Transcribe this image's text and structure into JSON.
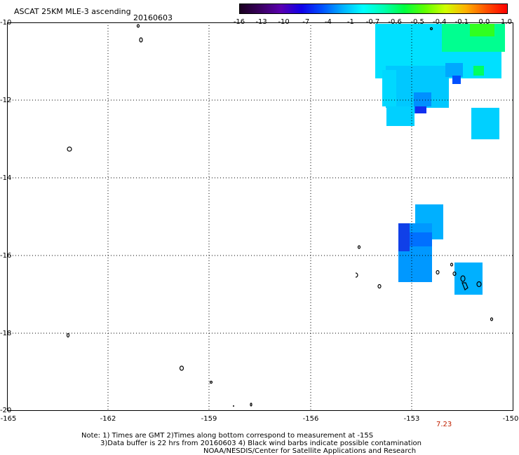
{
  "header": {
    "title": "ASCAT 25KM MLE-3 ascending",
    "date": "20160603"
  },
  "colorbar": {
    "labels": [
      "-16",
      "-13",
      "-10",
      "-7",
      "-4",
      "-1",
      "-0.7",
      "-0.6",
      "-0.5",
      "-0.4",
      "-0.1",
      "0.0",
      "1.0"
    ],
    "colors": [
      "#1a001f",
      "#3a0060",
      "#5a00b0",
      "#1000e8",
      "#0050ff",
      "#00b0ff",
      "#00ffff",
      "#00ffb0",
      "#00ff40",
      "#60ff00",
      "#d0ff00",
      "#ffb000",
      "#ff5000",
      "#ff0000"
    ]
  },
  "map": {
    "lat_labels": [
      "-10",
      "-12",
      "-14",
      "-16",
      "-18",
      "-20"
    ],
    "lon_labels": [
      "-165",
      "-162",
      "-159",
      "-156",
      "-153",
      "-150"
    ],
    "time_label": "7.23"
  },
  "footer": {
    "line1": "Note: 1) Times are GMT 2)Times along bottom correspond to measurement at -15S",
    "line2": "3)Data buffer is 22 hrs from 20160603 4) Black wind barbs indicate possible contamination",
    "line3": "NOAA/NESDIS/Center for Satellite Applications and Research"
  }
}
